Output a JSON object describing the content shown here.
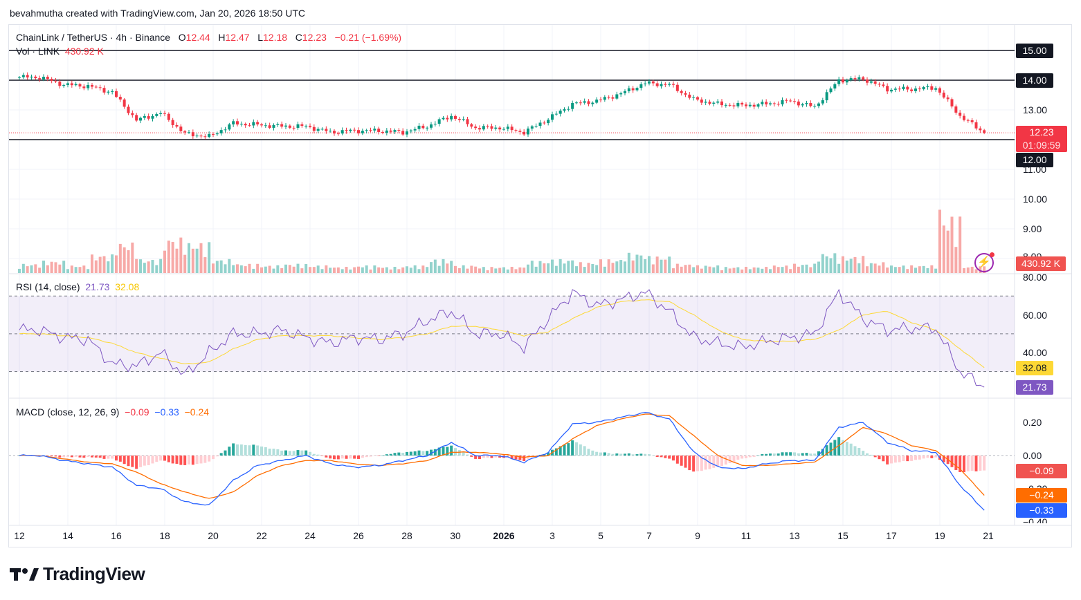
{
  "credit": "bevahmutha created with TradingView.com, Jan 20, 2026 18:50 UTC",
  "brand": "TradingView",
  "colors": {
    "up": "#089981",
    "down": "#f23645",
    "rsi": "#7e57c2",
    "rsi_ma": "#fdd835",
    "macd": "#2962ff",
    "signal": "#ff6d00",
    "level_line": "#131722"
  },
  "legend": {
    "symbol": "ChainLink / TetherUS · 4h · Binance",
    "o_label": "O",
    "o": "12.44",
    "h_label": "H",
    "h": "12.47",
    "l_label": "L",
    "l": "12.18",
    "c_label": "C",
    "c": "12.23",
    "change": "−0.21 (−1.69%)",
    "vol_label": "Vol · LINK",
    "vol": "430.92 K"
  },
  "price_axis": {
    "ticks": [
      "15.00",
      "14.00",
      "13.00",
      "12.00",
      "11.00",
      "10.00",
      "9.00",
      "8.00"
    ],
    "current_price": "12.23",
    "countdown": "01:09:59",
    "volume_tag": "430.92 K",
    "level_tags": [
      "15.00",
      "14.00",
      "12.00"
    ]
  },
  "rsi": {
    "legend": "RSI (14, close)",
    "value": "21.73",
    "ma_value": "32.08",
    "ticks": [
      "80.00",
      "60.00",
      "40.00"
    ]
  },
  "macd": {
    "legend": "MACD (close, 12, 26, 9)",
    "hist": "−0.09",
    "macd": "−0.33",
    "signal": "−0.24",
    "ticks": [
      "0.20",
      "0.00",
      "−0.20",
      "−0.40"
    ]
  },
  "time_axis": [
    "12",
    "14",
    "16",
    "18",
    "20",
    "22",
    "24",
    "26",
    "28",
    "30",
    "2026",
    "3",
    "5",
    "7",
    "9",
    "11",
    "13",
    "15",
    "17",
    "19",
    "21"
  ],
  "chart_data": {
    "type": "candlestick",
    "interval": "4h",
    "x_start": "2025-12-12",
    "x_end": "2026-01-20",
    "price_ylim": [
      8,
      15.5
    ],
    "horizontal_levels": [
      15,
      14,
      12
    ],
    "daily_close": [
      14.1,
      13.85,
      13.8,
      13.6,
      12.65,
      12.9,
      12.2,
      12.1,
      12.55,
      12.5,
      12.45,
      12.45,
      12.25,
      12.3,
      12.3,
      12.25,
      12.45,
      12.8,
      12.4,
      12.4,
      12.25,
      12.7,
      13.2,
      13.3,
      13.55,
      13.9,
      13.85,
      13.35,
      13.2,
      13.15,
      13.2,
      13.3,
      13.1,
      14.0,
      14.05,
      13.7,
      13.7,
      13.75,
      12.8,
      12.23
    ],
    "daily_volume_k": [
      600,
      800,
      500,
      1200,
      2000,
      900,
      2300,
      2000,
      900,
      600,
      500,
      600,
      500,
      400,
      500,
      400,
      500,
      900,
      500,
      400,
      400,
      800,
      900,
      700,
      900,
      1300,
      1100,
      600,
      500,
      400,
      400,
      500,
      600,
      1300,
      1100,
      700,
      500,
      500,
      3700,
      430.92
    ],
    "rsi": [
      52,
      48,
      47,
      34,
      33,
      40,
      28,
      40,
      50,
      50,
      52,
      48,
      45,
      48,
      47,
      50,
      57,
      62,
      50,
      50,
      43,
      58,
      72,
      65,
      68,
      72,
      62,
      48,
      45,
      43,
      46,
      48,
      50,
      72,
      58,
      52,
      53,
      53,
      30,
      21.73
    ],
    "rsi_ma": [
      50,
      49,
      48,
      45,
      40,
      37,
      34,
      35,
      42,
      47,
      49,
      49,
      49,
      48,
      47,
      48,
      50,
      54,
      54,
      52,
      49,
      51,
      58,
      64,
      67,
      68,
      67,
      60,
      52,
      47,
      46,
      46,
      47,
      52,
      60,
      62,
      56,
      52,
      42,
      32.08
    ],
    "rsi_bands": [
      70,
      50,
      30
    ],
    "macd": [
      0.0,
      -0.03,
      -0.05,
      -0.07,
      -0.18,
      -0.2,
      -0.28,
      -0.3,
      -0.15,
      -0.06,
      -0.03,
      0.0,
      -0.05,
      -0.07,
      -0.06,
      -0.03,
      0.0,
      0.08,
      0.0,
      0.0,
      -0.04,
      0.02,
      0.19,
      0.2,
      0.23,
      0.26,
      0.22,
      0.02,
      -0.07,
      -0.08,
      -0.05,
      -0.03,
      -0.03,
      0.17,
      0.2,
      0.08,
      0.03,
      0.02,
      -0.18,
      -0.33
    ],
    "signal": [
      0.0,
      -0.02,
      -0.04,
      -0.05,
      -0.1,
      -0.17,
      -0.22,
      -0.26,
      -0.22,
      -0.12,
      -0.06,
      -0.03,
      -0.03,
      -0.05,
      -0.06,
      -0.05,
      -0.03,
      0.02,
      0.02,
      0.01,
      -0.01,
      0.0,
      0.1,
      0.18,
      0.22,
      0.25,
      0.24,
      0.12,
      0.0,
      -0.06,
      -0.06,
      -0.05,
      -0.04,
      0.06,
      0.17,
      0.13,
      0.06,
      0.03,
      -0.08,
      -0.24
    ],
    "macd_ylim": [
      -0.4,
      0.3
    ],
    "rsi_ylim": [
      20,
      85
    ]
  }
}
